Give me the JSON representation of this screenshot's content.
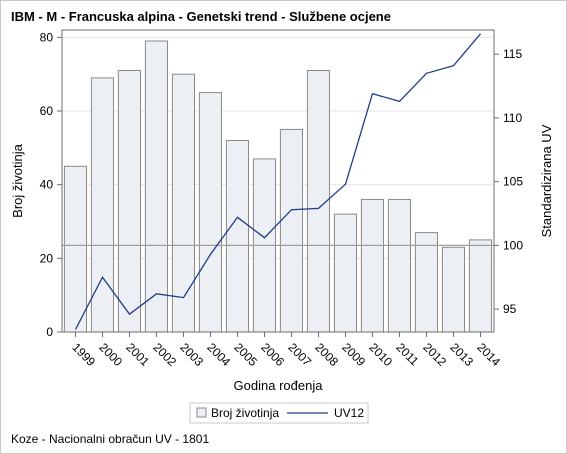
{
  "title": "IBM - M - Francuska alpina - Genetski trend - Službene ocjene",
  "footnote": "Koze - Nacionalni obračun UV - 1801",
  "chart_data": {
    "type": "bar",
    "categories": [
      "1999",
      "2000",
      "2001",
      "2002",
      "2003",
      "2004",
      "2005",
      "2006",
      "2007",
      "2008",
      "2009",
      "2010",
      "2011",
      "2012",
      "2013",
      "2014"
    ],
    "xlabel": "Godina rođenja",
    "ylabel": "Broj životinja",
    "y2label": "Standardizirana UV",
    "ylim": [
      0,
      82
    ],
    "yticks": [
      0,
      20,
      40,
      60,
      80
    ],
    "y2lim": [
      93.2,
      116.9
    ],
    "y2ticks": [
      95,
      100,
      105,
      110,
      115
    ],
    "series": [
      {
        "name": "Broj životinja",
        "type": "bar",
        "axis": "left",
        "color": "#eceff4",
        "values": [
          45,
          69,
          71,
          79,
          70,
          65,
          52,
          47,
          55,
          71,
          32,
          36,
          36,
          27,
          23,
          25
        ]
      },
      {
        "name": "UV12",
        "type": "line",
        "axis": "right",
        "color": "#1f3c88",
        "values": [
          93.4,
          97.5,
          94.6,
          96.2,
          95.9,
          99.3,
          102.2,
          100.6,
          102.8,
          102.9,
          104.8,
          111.9,
          111.3,
          113.5,
          114.1,
          116.6
        ]
      }
    ],
    "reference_line": {
      "axis": "right",
      "value": 100,
      "color": "#9aa39a"
    },
    "grid": true,
    "legend_position": "bottom"
  }
}
